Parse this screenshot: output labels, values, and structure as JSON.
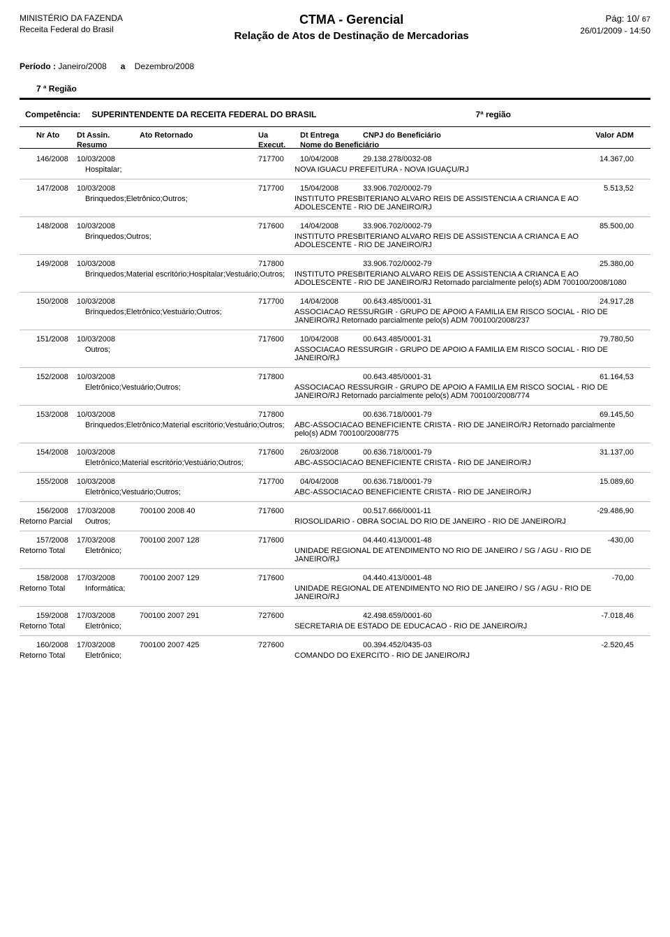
{
  "header": {
    "ministry": "MINISTÉRIO DA FAZENDA",
    "agency": "Receita Federal do Brasil",
    "title1": "CTMA - Gerencial",
    "title2": "Relação de Atos de Destinação de Mercadorias",
    "page_label": "Pág:",
    "page_current": "10/",
    "page_total": "67",
    "timestamp": "26/01/2009 - 14:50"
  },
  "period": {
    "label": "Período :",
    "from": "Janeiro/2008",
    "a": "a",
    "to": "Dezembro/2008"
  },
  "region": "7 ª Região",
  "competencia": {
    "label": "Competência:",
    "value": "SUPERINTENDENTE DA RECEITA FEDERAL DO BRASIL",
    "region": "7ª  região"
  },
  "columns": {
    "nr": "Nr Ato",
    "dt": "Dt Assin.",
    "ret": "Ato Retornado",
    "ua": "Ua",
    "ent": "Dt Entrega",
    "cnpj": "CNPJ do Beneficiário",
    "val": "Valor ADM",
    "resumo": "Resumo",
    "execut": "Execut.",
    "nome": "Nome do Beneficiário"
  },
  "records": [
    {
      "nr": "146/2008",
      "dt": "10/03/2008",
      "ret": "",
      "ua": "717700",
      "ent": "10/04/2008",
      "cnpj": "29.138.278/0032-08",
      "val": "14.367,00",
      "tipo": "",
      "resumo": "Hospitalar;",
      "nome": "NOVA IGUACU PREFEITURA - NOVA IGUAÇU/RJ"
    },
    {
      "nr": "147/2008",
      "dt": "10/03/2008",
      "ret": "",
      "ua": "717700",
      "ent": "15/04/2008",
      "cnpj": "33.906.702/0002-79",
      "val": "5.513,52",
      "tipo": "",
      "resumo": "Brinquedos;Eletrônico;Outros;",
      "nome": "INSTITUTO PRESBITERIANO ALVARO REIS DE ASSISTENCIA A CRIANCA E AO ADOLESCENTE - RIO DE JANEIRO/RJ"
    },
    {
      "nr": "148/2008",
      "dt": "10/03/2008",
      "ret": "",
      "ua": "717600",
      "ent": "14/04/2008",
      "cnpj": "33.906.702/0002-79",
      "val": "85.500,00",
      "tipo": "",
      "resumo": "Brinquedos;Outros;",
      "nome": "INSTITUTO PRESBITERIANO ALVARO REIS DE ASSISTENCIA A CRIANCA E AO ADOLESCENTE - RIO DE JANEIRO/RJ"
    },
    {
      "nr": "149/2008",
      "dt": "10/03/2008",
      "ret": "",
      "ua": "717800",
      "ent": "",
      "cnpj": "33.906.702/0002-79",
      "val": "25.380,00",
      "tipo": "",
      "resumo": "Brinquedos;Material escritório;Hospitalar;Vestuário;Outros;",
      "nome": "INSTITUTO PRESBITERIANO ALVARO REIS DE ASSISTENCIA A CRIANCA E AO ADOLESCENTE - RIO DE JANEIRO/RJ Retornado parcialmente pelo(s) ADM 700100/2008/1080"
    },
    {
      "nr": "150/2008",
      "dt": "10/03/2008",
      "ret": "",
      "ua": "717700",
      "ent": "14/04/2008",
      "cnpj": "00.643.485/0001-31",
      "val": "24.917,28",
      "tipo": "",
      "resumo": "Brinquedos;Eletrônico;Vestuário;Outros;",
      "nome": "ASSOCIACAO RESSURGIR - GRUPO DE APOIO A FAMILIA EM RISCO SOCIAL - RIO DE JANEIRO/RJ Retornado parcialmente pelo(s) ADM 700100/2008/237"
    },
    {
      "nr": "151/2008",
      "dt": "10/03/2008",
      "ret": "",
      "ua": "717600",
      "ent": "10/04/2008",
      "cnpj": "00.643.485/0001-31",
      "val": "79.780,50",
      "tipo": "",
      "resumo": "Outros;",
      "nome": "ASSOCIACAO RESSURGIR - GRUPO DE APOIO A FAMILIA EM RISCO SOCIAL - RIO DE JANEIRO/RJ"
    },
    {
      "nr": "152/2008",
      "dt": "10/03/2008",
      "ret": "",
      "ua": "717800",
      "ent": "",
      "cnpj": "00.643.485/0001-31",
      "val": "61.164,53",
      "tipo": "",
      "resumo": "Eletrônico;Vestuário;Outros;",
      "nome": "ASSOCIACAO RESSURGIR - GRUPO DE APOIO A FAMILIA EM RISCO SOCIAL - RIO DE JANEIRO/RJ Retornado parcialmente pelo(s) ADM 700100/2008/774"
    },
    {
      "nr": "153/2008",
      "dt": "10/03/2008",
      "ret": "",
      "ua": "717800",
      "ent": "",
      "cnpj": "00.636.718/0001-79",
      "val": "69.145,50",
      "tipo": "",
      "resumo": "Brinquedos;Eletrônico;Material escritório;Vestuário;Outros;",
      "nome": "ABC-ASSOCIACAO BENEFICIENTE CRISTA - RIO DE JANEIRO/RJ Retornado parcialmente pelo(s) ADM 700100/2008/775"
    },
    {
      "nr": "154/2008",
      "dt": "10/03/2008",
      "ret": "",
      "ua": "717600",
      "ent": "26/03/2008",
      "cnpj": "00.636.718/0001-79",
      "val": "31.137,00",
      "tipo": "",
      "resumo": "Eletrônico;Material escritório;Vestuário;Outros;",
      "nome": "ABC-ASSOCIACAO BENEFICIENTE CRISTA - RIO DE JANEIRO/RJ"
    },
    {
      "nr": "155/2008",
      "dt": "10/03/2008",
      "ret": "",
      "ua": "717700",
      "ent": "04/04/2008",
      "cnpj": "00.636.718/0001-79",
      "val": "15.089,60",
      "tipo": "",
      "resumo": "Eletrônico;Vestuário;Outros;",
      "nome": "ABC-ASSOCIACAO BENEFICIENTE CRISTA - RIO DE JANEIRO/RJ"
    },
    {
      "nr": "156/2008",
      "dt": "17/03/2008",
      "ret": "700100 2008 40",
      "ua": "717600",
      "ent": "",
      "cnpj": "00.517.666/0001-11",
      "val": "-29.486,90",
      "tipo": "Retorno Parcial",
      "resumo": "Outros;",
      "nome": "RIOSOLIDARIO - OBRA SOCIAL DO RIO DE JANEIRO - RIO DE JANEIRO/RJ"
    },
    {
      "nr": "157/2008",
      "dt": "17/03/2008",
      "ret": "700100 2007 128",
      "ua": "717600",
      "ent": "",
      "cnpj": "04.440.413/0001-48",
      "val": "-430,00",
      "tipo": "Retorno Total",
      "resumo": "Eletrônico;",
      "nome": "UNIDADE REGIONAL DE ATENDIMENTO NO RIO DE JANEIRO / SG / AGU - RIO DE JANEIRO/RJ"
    },
    {
      "nr": "158/2008",
      "dt": "17/03/2008",
      "ret": "700100 2007 129",
      "ua": "717600",
      "ent": "",
      "cnpj": "04.440.413/0001-48",
      "val": "-70,00",
      "tipo": "Retorno Total",
      "resumo": "Informática;",
      "nome": "UNIDADE REGIONAL DE ATENDIMENTO NO RIO DE JANEIRO / SG / AGU - RIO DE JANEIRO/RJ"
    },
    {
      "nr": "159/2008",
      "dt": "17/03/2008",
      "ret": "700100 2007 291",
      "ua": "727600",
      "ent": "",
      "cnpj": "42.498.659/0001-60",
      "val": "-7.018,46",
      "tipo": "Retorno Total",
      "resumo": "Eletrônico;",
      "nome": "SECRETARIA DE ESTADO DE EDUCACAO - RIO DE JANEIRO/RJ"
    },
    {
      "nr": "160/2008",
      "dt": "17/03/2008",
      "ret": "700100 2007 425",
      "ua": "727600",
      "ent": "",
      "cnpj": "00.394.452/0435-03",
      "val": "-2.520,45",
      "tipo": "Retorno Total",
      "resumo": "Eletrônico;",
      "nome": "COMANDO DO EXERCITO - RIO DE JANEIRO/RJ"
    }
  ]
}
